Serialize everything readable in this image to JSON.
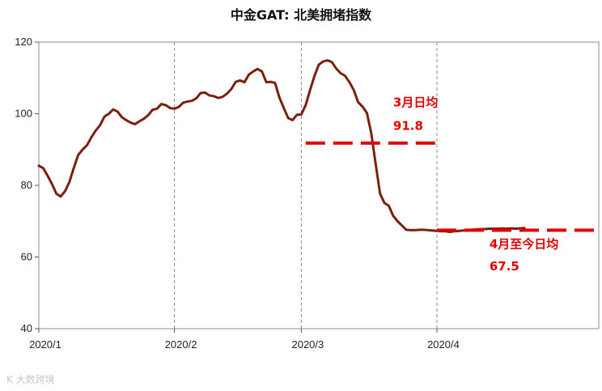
{
  "chart_data": {
    "type": "line",
    "title": "中金GAT: 北美拥堵指数",
    "xlabel": "",
    "ylabel": "",
    "ylim": [
      40,
      120
    ],
    "yticks": [
      "40",
      "60",
      "80",
      "100",
      "120"
    ],
    "xticks": [
      {
        "label": "2020/1",
        "x": 0
      },
      {
        "label": "2020/2",
        "x": 31
      },
      {
        "label": "2020/3",
        "x": 60
      },
      {
        "label": "2020/4",
        "x": 91
      }
    ],
    "grid": "vertical dashed at month starts",
    "colors": {
      "line": "#7b1f10",
      "avg": "#e00000",
      "annotation": "#e00000"
    },
    "series": [
      {
        "name": "",
        "x": [
          0,
          1,
          2,
          3,
          4,
          5,
          6,
          7,
          8,
          9,
          10,
          11,
          12,
          13,
          14,
          15,
          16,
          17,
          18,
          19,
          20,
          21,
          22,
          23,
          24,
          25,
          26,
          27,
          28,
          29,
          30,
          31,
          32,
          33,
          34,
          35,
          36,
          37,
          38,
          39,
          40,
          41,
          42,
          43,
          44,
          45,
          46,
          47,
          48,
          49,
          50,
          51,
          52,
          53,
          54,
          55,
          56,
          57,
          58,
          59,
          60,
          61,
          62,
          63,
          64,
          65,
          66,
          67,
          68,
          69,
          70,
          71,
          72,
          73,
          74,
          75,
          76,
          77,
          78,
          79,
          80,
          81,
          82,
          83,
          84,
          85,
          86,
          87,
          88,
          89,
          90,
          91,
          92,
          93,
          94,
          95,
          96,
          97,
          98,
          99,
          100,
          101,
          102,
          103,
          104,
          105,
          106,
          107,
          108,
          109,
          110,
          111
        ],
        "values": [
          85.5,
          84.8,
          82.7,
          80.4,
          77.7,
          76.9,
          78.4,
          81.0,
          84.9,
          88.5,
          90.0,
          91.2,
          93.4,
          95.3,
          96.8,
          99.2,
          100.0,
          101.2,
          100.6,
          99.0,
          98.2,
          97.5,
          97.1,
          97.9,
          98.6,
          99.6,
          101.1,
          101.4,
          102.7,
          102.4,
          101.6,
          101.4,
          101.9,
          103.1,
          103.4,
          103.6,
          104.3,
          105.8,
          105.9,
          105.1,
          104.9,
          104.4,
          104.7,
          105.6,
          106.9,
          108.9,
          109.3,
          108.8,
          110.9,
          111.8,
          112.5,
          111.8,
          108.8,
          108.9,
          108.6,
          104.5,
          101.6,
          98.8,
          98.2,
          99.7,
          99.8,
          102.4,
          106.6,
          110.5,
          113.7,
          114.6,
          114.9,
          114.4,
          112.6,
          111.3,
          110.6,
          108.8,
          106.6,
          103.2,
          102.0,
          100.2,
          94.5,
          86.0,
          77.7,
          75.1,
          74.3,
          71.5,
          70.0,
          68.8,
          67.6,
          67.5,
          67.5,
          67.6,
          67.6,
          67.5,
          67.4,
          67.3,
          67.2,
          67.2,
          67.0,
          67.2,
          67.3,
          67.4,
          67.5,
          67.6,
          67.7,
          67.8,
          67.8,
          67.9,
          67.9,
          67.9,
          68.0,
          67.9,
          68.0,
          67.9,
          68.0,
          68.1
        ]
      }
    ],
    "averages": [
      {
        "label": "3月日均",
        "value": 91.8,
        "x_start": 61,
        "x_end": 91
      },
      {
        "label": "4月至今日均",
        "value": 67.5,
        "x_start": 91,
        "x_end": 128
      }
    ]
  },
  "watermark": "K 大数跨境"
}
